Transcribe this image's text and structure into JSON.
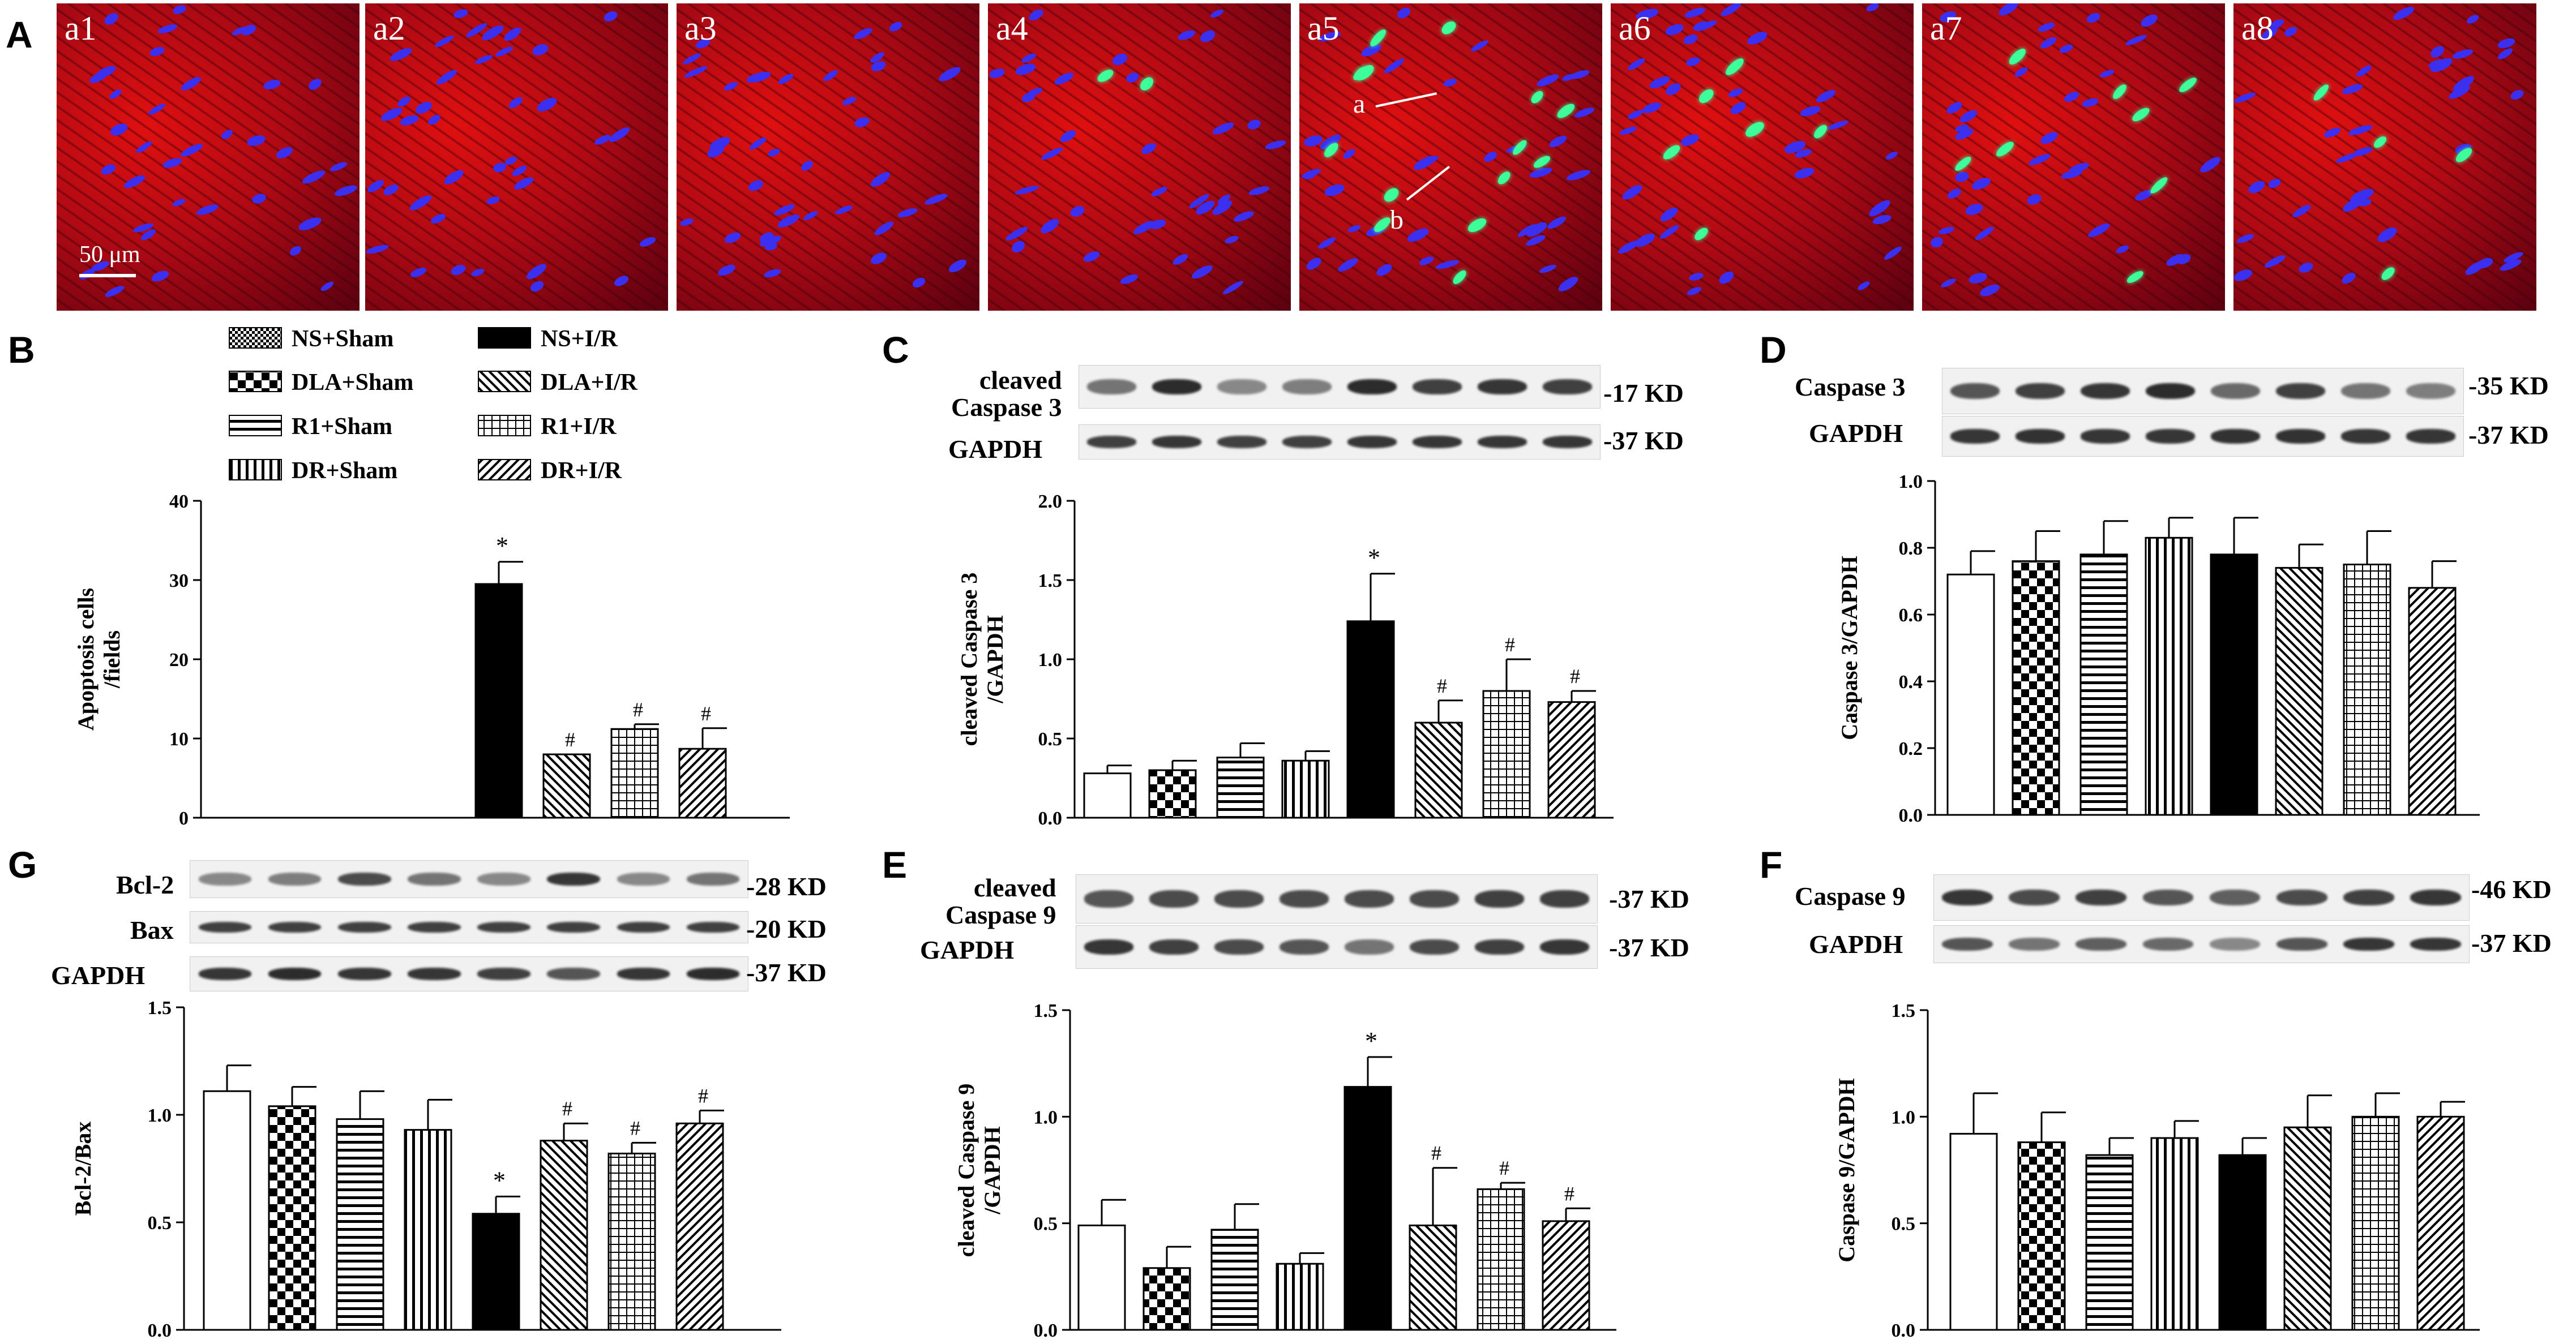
{
  "panels": {
    "A": "A",
    "B": "B",
    "C": "C",
    "D": "D",
    "E": "E",
    "F": "F",
    "G": "G"
  },
  "micrographs": {
    "labels": [
      "a1",
      "a2",
      "a3",
      "a4",
      "a5",
      "a6",
      "a7",
      "a8"
    ],
    "scale_bar": "50 μm",
    "arrow_a": "a",
    "arrow_b": "b"
  },
  "legend": [
    "NS+Sham",
    "NS+I/R",
    "DLA+Sham",
    "DLA+I/R",
    "R1+Sham",
    "R1+I/R",
    "DR+Sham",
    "DR+I/R"
  ],
  "blots": {
    "C": {
      "labels": [
        "cleaved\nCaspase 3",
        "GAPDH"
      ],
      "kd": [
        "-17 KD",
        "-37 KD"
      ]
    },
    "D": {
      "labels": [
        "Caspase 3",
        "GAPDH"
      ],
      "kd": [
        "-35 KD",
        "-37 KD"
      ]
    },
    "G": {
      "labels": [
        "Bcl-2",
        "Bax",
        "GAPDH"
      ],
      "kd": [
        "-28 KD",
        "-20 KD",
        "-37 KD"
      ]
    },
    "E": {
      "labels": [
        "cleaved\nCaspase 9",
        "GAPDH"
      ],
      "kd": [
        "-37 KD",
        "-37 KD"
      ]
    },
    "F": {
      "labels": [
        "Caspase 9",
        "GAPDH"
      ],
      "kd": [
        "-46 KD",
        "-37 KD"
      ]
    }
  },
  "chart_data": [
    {
      "panel": "B",
      "type": "bar",
      "ylabel": "Apoptosis cells\n/fields",
      "ylim": [
        0,
        40
      ],
      "yticks": [
        0,
        10,
        20,
        30,
        40
      ],
      "categories": [
        "NS+Sham",
        "DLA+Sham",
        "R1+Sham",
        "DR+Sham",
        "NS+I/R",
        "DLA+I/R",
        "R1+I/R",
        "DR+I/R"
      ],
      "values": [
        0,
        0,
        0,
        0,
        29.5,
        8,
        11.2,
        8.7
      ],
      "errors": [
        0,
        0,
        0,
        0,
        2.8,
        0,
        0.6,
        2.6
      ],
      "marks": [
        "",
        "",
        "",
        "",
        "*",
        "#",
        "#",
        "#"
      ]
    },
    {
      "panel": "C",
      "type": "bar",
      "ylabel": "cleaved Caspase 3\n/GAPDH",
      "ylim": [
        0,
        2.0
      ],
      "yticks": [
        0.0,
        0.5,
        1.0,
        1.5,
        2.0
      ],
      "categories": [
        "NS+Sham",
        "DLA+Sham",
        "R1+Sham",
        "DR+Sham",
        "NS+I/R",
        "DLA+I/R",
        "R1+I/R",
        "DR+I/R"
      ],
      "values": [
        0.28,
        0.3,
        0.38,
        0.36,
        1.24,
        0.6,
        0.8,
        0.73
      ],
      "errors": [
        0.05,
        0.06,
        0.09,
        0.06,
        0.3,
        0.14,
        0.2,
        0.07
      ],
      "marks": [
        "",
        "",
        "",
        "",
        "*",
        "#",
        "#",
        "#"
      ]
    },
    {
      "panel": "D",
      "type": "bar",
      "ylabel": "Caspase 3/GAPDH",
      "ylim": [
        0,
        1.0
      ],
      "yticks": [
        0.0,
        0.2,
        0.4,
        0.6,
        0.8,
        1.0
      ],
      "categories": [
        "NS+Sham",
        "DLA+Sham",
        "R1+Sham",
        "DR+Sham",
        "NS+I/R",
        "DLA+I/R",
        "R1+I/R",
        "DR+I/R"
      ],
      "values": [
        0.72,
        0.76,
        0.78,
        0.83,
        0.78,
        0.74,
        0.75,
        0.68
      ],
      "errors": [
        0.07,
        0.09,
        0.1,
        0.06,
        0.11,
        0.07,
        0.1,
        0.08
      ],
      "marks": [
        "",
        "",
        "",
        "",
        "",
        "",
        "",
        ""
      ]
    },
    {
      "panel": "G",
      "type": "bar",
      "ylabel": "Bcl-2/Bax",
      "ylim": [
        0,
        1.5
      ],
      "yticks": [
        0.0,
        0.5,
        1.0,
        1.5
      ],
      "categories": [
        "NS+Sham",
        "DLA+Sham",
        "R1+Sham",
        "DR+Sham",
        "NS+I/R",
        "DLA+I/R",
        "R1+I/R",
        "DR+I/R"
      ],
      "values": [
        1.11,
        1.04,
        0.98,
        0.93,
        0.54,
        0.88,
        0.82,
        0.96
      ],
      "errors": [
        0.12,
        0.09,
        0.13,
        0.14,
        0.08,
        0.08,
        0.05,
        0.06
      ],
      "marks": [
        "",
        "",
        "",
        "",
        "*",
        "#",
        "#",
        "#"
      ]
    },
    {
      "panel": "E",
      "type": "bar",
      "ylabel": "cleaved Caspase 9\n/GAPDH",
      "ylim": [
        0,
        1.5
      ],
      "yticks": [
        0.0,
        0.5,
        1.0,
        1.5
      ],
      "categories": [
        "NS+Sham",
        "DLA+Sham",
        "R1+Sham",
        "DR+Sham",
        "NS+I/R",
        "DLA+I/R",
        "R1+I/R",
        "DR+I/R"
      ],
      "values": [
        0.49,
        0.29,
        0.47,
        0.31,
        1.14,
        0.49,
        0.66,
        0.51
      ],
      "errors": [
        0.12,
        0.1,
        0.12,
        0.05,
        0.14,
        0.27,
        0.03,
        0.06
      ],
      "marks": [
        "",
        "",
        "",
        "",
        "*",
        "#",
        "#",
        "#"
      ]
    },
    {
      "panel": "F",
      "type": "bar",
      "ylabel": "Caspase 9/GAPDH",
      "ylim": [
        0,
        1.5
      ],
      "yticks": [
        0.0,
        0.5,
        1.0,
        1.5
      ],
      "categories": [
        "NS+Sham",
        "DLA+Sham",
        "R1+Sham",
        "DR+Sham",
        "NS+I/R",
        "DLA+I/R",
        "R1+I/R",
        "DR+I/R"
      ],
      "values": [
        0.92,
        0.88,
        0.82,
        0.9,
        0.82,
        0.95,
        1.0,
        1.0
      ],
      "errors": [
        0.19,
        0.14,
        0.08,
        0.08,
        0.08,
        0.15,
        0.11,
        0.07
      ],
      "marks": [
        "",
        "",
        "",
        "",
        "",
        "",
        "",
        ""
      ]
    }
  ]
}
